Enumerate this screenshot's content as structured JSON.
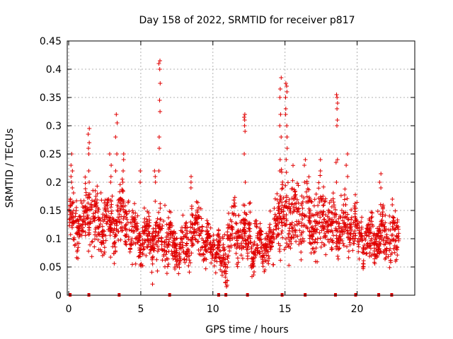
{
  "chart_data": {
    "type": "scatter",
    "title": "Day 158 of 2022, SRMTID for receiver p817",
    "xlabel": "GPS time / hours",
    "ylabel": "SRMTID / TECUs",
    "xlim": [
      -0.1,
      24
    ],
    "ylim": [
      0,
      0.45
    ],
    "xticks": [
      0,
      5,
      10,
      15,
      20
    ],
    "xtick_labels": [
      "0",
      "5",
      "10",
      "15",
      "20"
    ],
    "yticks": [
      0,
      0.05,
      0.1,
      0.15,
      0.2,
      0.25,
      0.3,
      0.35,
      0.4,
      0.45
    ],
    "ytick_labels": [
      "0",
      "0.05",
      "0.1",
      "0.15",
      "0.2",
      "0.25",
      "0.3",
      "0.35",
      "0.4",
      "0.45"
    ],
    "grid": true,
    "marker": "+",
    "color": "#e00000",
    "x_data_range": [
      0,
      22.9
    ],
    "clusters": [
      {
        "t0": 0.0,
        "t1": 1.0,
        "mean": 0.13,
        "spread": 0.035
      },
      {
        "t0": 1.0,
        "t1": 2.0,
        "mean": 0.14,
        "spread": 0.04
      },
      {
        "t0": 2.0,
        "t1": 3.4,
        "mean": 0.12,
        "spread": 0.035
      },
      {
        "t0": 3.4,
        "t1": 4.2,
        "mean": 0.14,
        "spread": 0.04
      },
      {
        "t0": 4.2,
        "t1": 5.8,
        "mean": 0.105,
        "spread": 0.03
      },
      {
        "t0": 5.8,
        "t1": 7.0,
        "mean": 0.1,
        "spread": 0.035
      },
      {
        "t0": 7.0,
        "t1": 8.4,
        "mean": 0.09,
        "spread": 0.025
      },
      {
        "t0": 8.4,
        "t1": 9.3,
        "mean": 0.11,
        "spread": 0.035
      },
      {
        "t0": 9.3,
        "t1": 10.4,
        "mean": 0.085,
        "spread": 0.02
      },
      {
        "t0": 10.4,
        "t1": 11.0,
        "mean": 0.06,
        "spread": 0.025
      },
      {
        "t0": 11.0,
        "t1": 12.6,
        "mean": 0.11,
        "spread": 0.035
      },
      {
        "t0": 12.6,
        "t1": 14.2,
        "mean": 0.085,
        "spread": 0.025
      },
      {
        "t0": 14.2,
        "t1": 16.8,
        "mean": 0.14,
        "spread": 0.045
      },
      {
        "t0": 16.8,
        "t1": 18.2,
        "mean": 0.13,
        "spread": 0.04
      },
      {
        "t0": 18.2,
        "t1": 20.0,
        "mean": 0.12,
        "spread": 0.03
      },
      {
        "t0": 20.0,
        "t1": 21.5,
        "mean": 0.1,
        "spread": 0.025
      },
      {
        "t0": 21.5,
        "t1": 22.9,
        "mean": 0.1,
        "spread": 0.03
      }
    ],
    "spikes": [
      {
        "t": 0.2,
        "values": [
          0.23,
          0.22,
          0.25,
          0.21,
          0.2,
          0.19
        ]
      },
      {
        "t": 1.4,
        "values": [
          0.26,
          0.27,
          0.285,
          0.295,
          0.25,
          0.22,
          0.2
        ]
      },
      {
        "t": 2.9,
        "values": [
          0.21,
          0.23,
          0.25,
          0.2
        ]
      },
      {
        "t": 3.3,
        "values": [
          0.32,
          0.305,
          0.28,
          0.25,
          0.22
        ]
      },
      {
        "t": 3.8,
        "values": [
          0.24,
          0.25,
          0.22,
          0.2
        ]
      },
      {
        "t": 5.0,
        "values": [
          0.22,
          0.2
        ]
      },
      {
        "t": 6.3,
        "values": [
          0.415,
          0.41,
          0.4,
          0.375,
          0.345,
          0.325,
          0.28,
          0.26,
          0.22
        ]
      },
      {
        "t": 6.0,
        "values": [
          0.2,
          0.21,
          0.22
        ]
      },
      {
        "t": 8.5,
        "values": [
          0.21,
          0.2,
          0.19
        ]
      },
      {
        "t": 12.2,
        "values": [
          0.32,
          0.315,
          0.31,
          0.3,
          0.29,
          0.25,
          0.2
        ]
      },
      {
        "t": 14.7,
        "values": [
          0.385,
          0.365,
          0.35,
          0.32,
          0.3,
          0.28,
          0.24,
          0.22
        ]
      },
      {
        "t": 15.1,
        "values": [
          0.375,
          0.37,
          0.36,
          0.35,
          0.33,
          0.32,
          0.3,
          0.28,
          0.26,
          0.24
        ]
      },
      {
        "t": 16.4,
        "values": [
          0.24,
          0.23,
          0.2
        ]
      },
      {
        "t": 17.5,
        "values": [
          0.24,
          0.22
        ]
      },
      {
        "t": 18.6,
        "values": [
          0.355,
          0.35,
          0.34,
          0.33,
          0.31,
          0.3,
          0.24,
          0.235,
          0.2
        ]
      },
      {
        "t": 19.3,
        "values": [
          0.25,
          0.23,
          0.21
        ]
      },
      {
        "t": 21.6,
        "values": [
          0.215,
          0.2,
          0.19
        ]
      },
      {
        "t": 22.4,
        "values": [
          0.17,
          0.16
        ]
      }
    ],
    "zero_marks_x": [
      0.1,
      1.4,
      3.5,
      7.0,
      10.4,
      10.9,
      12.4,
      14.8,
      16.4,
      18.5,
      19.9,
      21.5,
      22.4
    ]
  }
}
